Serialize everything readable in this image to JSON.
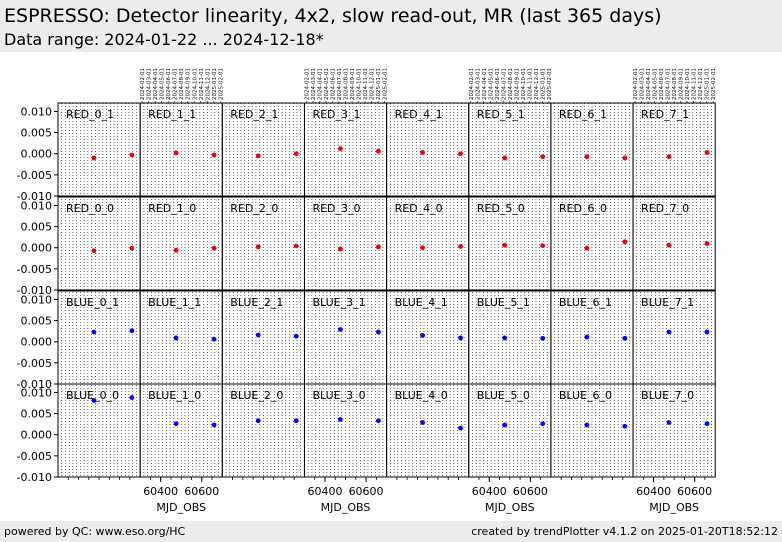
{
  "header": {
    "title": "ESPRESSO: Detector linearity, 4x2, slow read-out, MR (last 365 days)",
    "subtitle": "Data range: 2024-01-22 ... 2024-12-18*"
  },
  "footer": {
    "left": "powered by QC: www.eso.org/HC",
    "right": "created by trendPlotter v4.1.2 on 2025-01-20T18:52:12"
  },
  "colors": {
    "red_series": "#e8000b",
    "blue_series": "#0000ff",
    "header_bg": "#ececec"
  },
  "chart_data": {
    "type": "scatter",
    "xlabel": "MJD_OBS",
    "ylabel": "",
    "xlim": [
      60300,
      60700
    ],
    "ylim": [
      -0.01,
      0.012
    ],
    "y_ticks": [
      "0.010",
      "0.005",
      "0.000",
      "-0.005",
      "-0.010"
    ],
    "x_ticks": [
      "60400",
      "60600"
    ],
    "x_ticks_shown_under_columns": [
      1,
      3,
      5,
      7
    ],
    "date_ticks": [
      "2024-02-01",
      "2024-03-01",
      "2024-04-01",
      "2024-05-01",
      "2024-06-01",
      "2024-07-01",
      "2024-08-01",
      "2024-09-01",
      "2024-10-01",
      "2024-11-01",
      "2024-12-01",
      "2025-01-01",
      "2025-02-01"
    ],
    "date_ticks_shown_above_columns": [
      1,
      3,
      5,
      7
    ],
    "grid": "vertical dotted",
    "rows": [
      {
        "color": "red",
        "panels": [
          {
            "label": "RED_0_1",
            "points": [
              {
                "x": 60475,
                "y": -0.001
              },
              {
                "x": 60660,
                "y": -0.0003
              }
            ]
          },
          {
            "label": "RED_1_1",
            "points": [
              {
                "x": 60475,
                "y": 0.0002
              },
              {
                "x": 60660,
                "y": -0.0003
              }
            ]
          },
          {
            "label": "RED_2_1",
            "points": [
              {
                "x": 60475,
                "y": -0.0005
              },
              {
                "x": 60660,
                "y": 0.0
              }
            ]
          },
          {
            "label": "RED_3_1",
            "points": [
              {
                "x": 60475,
                "y": 0.0012
              },
              {
                "x": 60660,
                "y": 0.0006
              }
            ]
          },
          {
            "label": "RED_4_1",
            "points": [
              {
                "x": 60475,
                "y": 0.0003
              },
              {
                "x": 60660,
                "y": 0.0
              }
            ]
          },
          {
            "label": "RED_5_1",
            "points": [
              {
                "x": 60475,
                "y": -0.001
              },
              {
                "x": 60660,
                "y": -0.0007
              }
            ]
          },
          {
            "label": "RED_6_1",
            "points": [
              {
                "x": 60475,
                "y": -0.0007
              },
              {
                "x": 60660,
                "y": -0.001
              }
            ]
          },
          {
            "label": "RED_7_1",
            "points": [
              {
                "x": 60475,
                "y": -0.0007
              },
              {
                "x": 60660,
                "y": 0.0003
              }
            ]
          }
        ]
      },
      {
        "color": "red",
        "panels": [
          {
            "label": "RED_0_0",
            "points": [
              {
                "x": 60475,
                "y": -0.0007
              },
              {
                "x": 60660,
                "y": -0.0001
              }
            ]
          },
          {
            "label": "RED_1_0",
            "points": [
              {
                "x": 60475,
                "y": -0.0006
              },
              {
                "x": 60660,
                "y": -0.0001
              }
            ]
          },
          {
            "label": "RED_2_0",
            "points": [
              {
                "x": 60475,
                "y": 0.0002
              },
              {
                "x": 60660,
                "y": 0.0004
              }
            ]
          },
          {
            "label": "RED_3_0",
            "points": [
              {
                "x": 60475,
                "y": -0.0003
              },
              {
                "x": 60660,
                "y": 0.0002
              }
            ]
          },
          {
            "label": "RED_4_0",
            "points": [
              {
                "x": 60475,
                "y": 0.0
              },
              {
                "x": 60660,
                "y": 0.0003
              }
            ]
          },
          {
            "label": "RED_5_0",
            "points": [
              {
                "x": 60475,
                "y": 0.0006
              },
              {
                "x": 60660,
                "y": 0.0005
              }
            ]
          },
          {
            "label": "RED_6_0",
            "points": [
              {
                "x": 60475,
                "y": -0.0001
              },
              {
                "x": 60660,
                "y": 0.0014
              }
            ]
          },
          {
            "label": "RED_7_0",
            "points": [
              {
                "x": 60475,
                "y": 0.0006
              },
              {
                "x": 60660,
                "y": 0.001
              }
            ]
          }
        ]
      },
      {
        "color": "blue",
        "panels": [
          {
            "label": "BLUE_0_1",
            "points": [
              {
                "x": 60475,
                "y": 0.0023
              },
              {
                "x": 60660,
                "y": 0.0026
              }
            ]
          },
          {
            "label": "BLUE_1_1",
            "points": [
              {
                "x": 60475,
                "y": 0.0009
              },
              {
                "x": 60660,
                "y": 0.0006
              }
            ]
          },
          {
            "label": "BLUE_2_1",
            "points": [
              {
                "x": 60475,
                "y": 0.0016
              },
              {
                "x": 60660,
                "y": 0.0013
              }
            ]
          },
          {
            "label": "BLUE_3_1",
            "points": [
              {
                "x": 60475,
                "y": 0.0029
              },
              {
                "x": 60660,
                "y": 0.0023
              }
            ]
          },
          {
            "label": "BLUE_4_1",
            "points": [
              {
                "x": 60475,
                "y": 0.0015
              },
              {
                "x": 60660,
                "y": 0.0009
              }
            ]
          },
          {
            "label": "BLUE_5_1",
            "points": [
              {
                "x": 60475,
                "y": 0.0009
              },
              {
                "x": 60660,
                "y": 0.0008
              }
            ]
          },
          {
            "label": "BLUE_6_1",
            "points": [
              {
                "x": 60475,
                "y": 0.0011
              },
              {
                "x": 60660,
                "y": 0.0008
              }
            ]
          },
          {
            "label": "BLUE_7_1",
            "points": [
              {
                "x": 60475,
                "y": 0.0023
              },
              {
                "x": 60660,
                "y": 0.0023
              }
            ]
          }
        ]
      },
      {
        "color": "blue",
        "panels": [
          {
            "label": "BLUE_0_0",
            "points": [
              {
                "x": 60475,
                "y": 0.0081
              },
              {
                "x": 60660,
                "y": 0.0088
              }
            ]
          },
          {
            "label": "BLUE_1_0",
            "points": [
              {
                "x": 60475,
                "y": 0.0026
              },
              {
                "x": 60660,
                "y": 0.0023
              }
            ]
          },
          {
            "label": "BLUE_2_0",
            "points": [
              {
                "x": 60475,
                "y": 0.0033
              },
              {
                "x": 60660,
                "y": 0.0033
              }
            ]
          },
          {
            "label": "BLUE_3_0",
            "points": [
              {
                "x": 60475,
                "y": 0.0036
              },
              {
                "x": 60660,
                "y": 0.0033
              }
            ]
          },
          {
            "label": "BLUE_4_0",
            "points": [
              {
                "x": 60475,
                "y": 0.0029
              },
              {
                "x": 60660,
                "y": 0.0016
              }
            ]
          },
          {
            "label": "BLUE_5_0",
            "points": [
              {
                "x": 60475,
                "y": 0.0023
              },
              {
                "x": 60660,
                "y": 0.0026
              }
            ]
          },
          {
            "label": "BLUE_6_0",
            "points": [
              {
                "x": 60475,
                "y": 0.0023
              },
              {
                "x": 60660,
                "y": 0.002
              }
            ]
          },
          {
            "label": "BLUE_7_0",
            "points": [
              {
                "x": 60475,
                "y": 0.0029
              },
              {
                "x": 60660,
                "y": 0.0026
              }
            ]
          }
        ]
      }
    ]
  }
}
